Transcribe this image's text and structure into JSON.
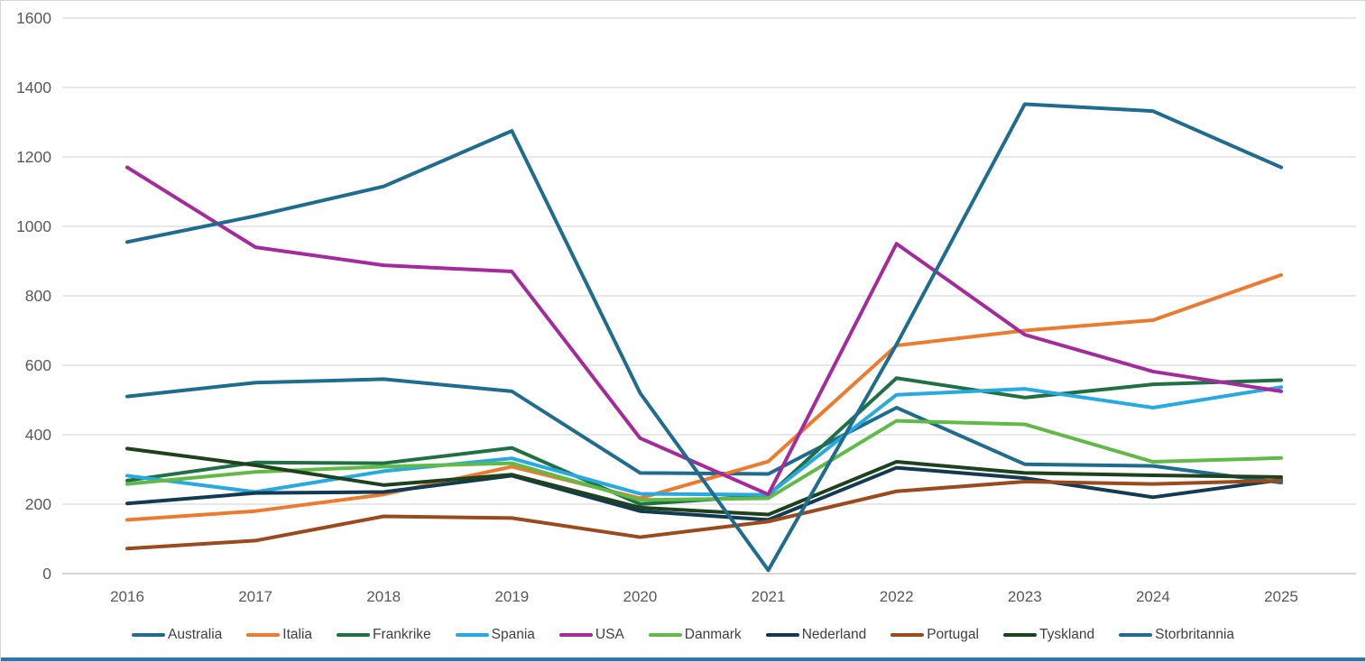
{
  "chart_data": {
    "type": "line",
    "title": "",
    "xlabel": "",
    "ylabel": "",
    "x": [
      "2016",
      "2017",
      "2018",
      "2019",
      "2020",
      "2021",
      "2022",
      "2023",
      "2024",
      "2025"
    ],
    "ylim": [
      0,
      1600
    ],
    "yticks": [
      0,
      200,
      400,
      600,
      800,
      1000,
      1200,
      1400,
      1600
    ],
    "grid": "horizontal-only",
    "legend_position": "bottom",
    "series": [
      {
        "name": "Australia",
        "color": "#1e6c8e",
        "values": [
          510,
          550,
          560,
          525,
          290,
          287,
          478,
          315,
          310,
          262
        ]
      },
      {
        "name": "Italia",
        "color": "#ec7b30",
        "values": [
          155,
          180,
          228,
          308,
          217,
          323,
          657,
          700,
          730,
          860
        ]
      },
      {
        "name": "Frankrike",
        "color": "#1f7145",
        "values": [
          268,
          320,
          318,
          362,
          200,
          225,
          563,
          507,
          545,
          557
        ]
      },
      {
        "name": "Spania",
        "color": "#27a9e1",
        "values": [
          282,
          235,
          295,
          332,
          230,
          227,
          515,
          532,
          478,
          537
        ]
      },
      {
        "name": "USA",
        "color": "#a52a9c",
        "values": [
          1170,
          940,
          888,
          870,
          390,
          228,
          950,
          688,
          582,
          525
        ]
      },
      {
        "name": "Danmark",
        "color": "#62ba46",
        "values": [
          258,
          293,
          308,
          318,
          212,
          217,
          440,
          430,
          322,
          333
        ]
      },
      {
        "name": "Nederland",
        "color": "#123a52",
        "values": [
          202,
          232,
          235,
          282,
          180,
          155,
          305,
          275,
          220,
          270
        ]
      },
      {
        "name": "Portugal",
        "color": "#9b4a1e",
        "values": [
          72,
          95,
          165,
          160,
          105,
          150,
          237,
          265,
          258,
          268
        ]
      },
      {
        "name": "Tyskland",
        "color": "#1f421e",
        "values": [
          360,
          312,
          255,
          285,
          190,
          170,
          322,
          290,
          283,
          278
        ]
      },
      {
        "name": "Storbritannia",
        "color": "#1e6c8e",
        "values": [
          955,
          1030,
          1115,
          1275,
          520,
          10,
          660,
          1352,
          1332,
          1170
        ]
      }
    ],
    "axis_tick_color": "#595959",
    "gridline_color": "#d9d9d9",
    "accent_bar_color": "#2e74b5"
  }
}
